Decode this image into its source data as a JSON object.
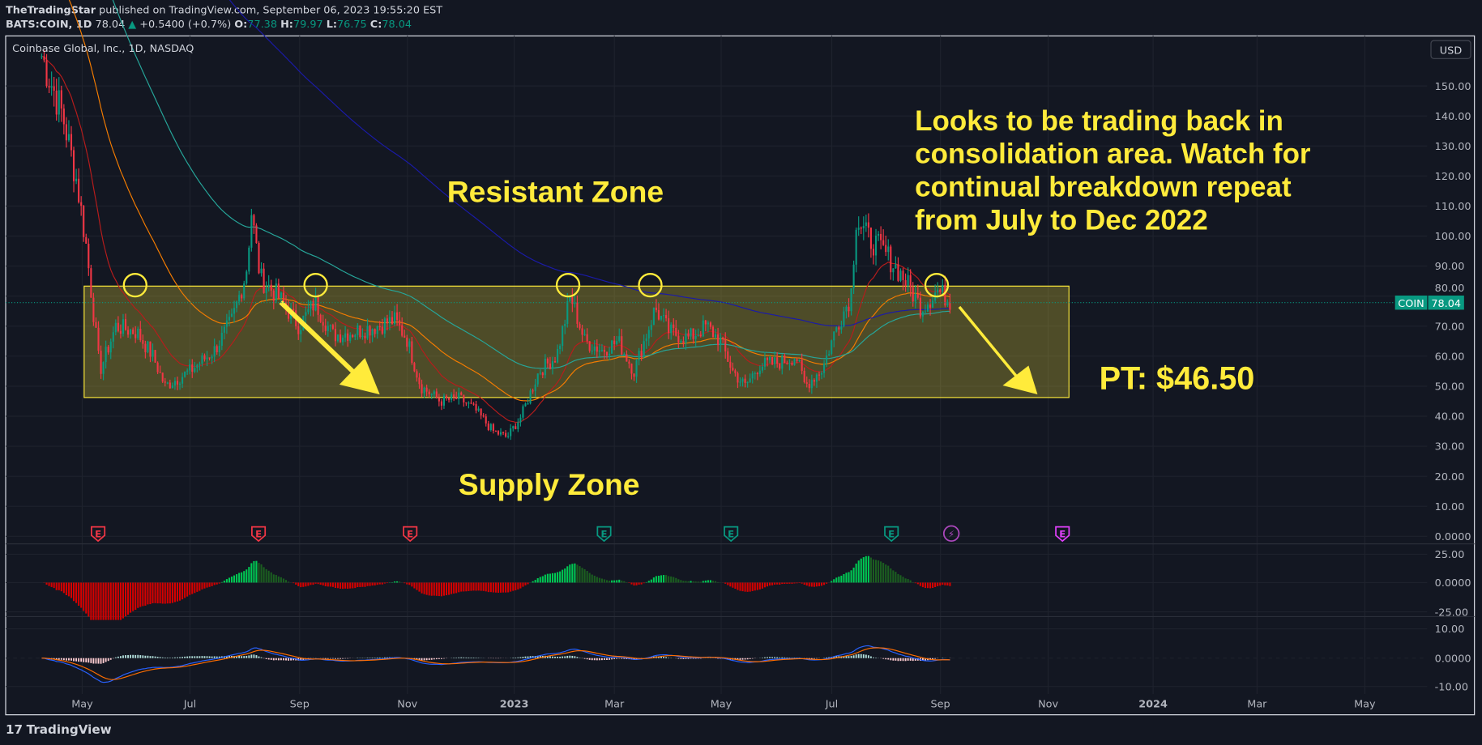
{
  "header": {
    "author": "TheTradingStar",
    "published": "published on TradingView.com, September 06, 2023 19:55:20 EST",
    "symbol": "BATS:COIN, 1D",
    "last": "78.04",
    "change": "+0.5400 (+0.7%)",
    "o_label": "O:",
    "o": "77.38",
    "h_label": "H:",
    "h": "79.97",
    "l_label": "L:",
    "l": "76.75",
    "c_label": "C:",
    "c": "78.04"
  },
  "legend_title": "Coinbase Global, Inc., 1D, NASDAQ",
  "currency_button": "USD",
  "price_tag": {
    "symbol": "COIN",
    "value": "78.04",
    "color": "#089981"
  },
  "footer_brand": "TradingView",
  "annotations": {
    "resistant": "Resistant Zone",
    "supply": "Supply Zone",
    "note": [
      "Looks to be trading back in",
      "consolidation area. Watch for",
      "continual breakdown repeat",
      "from July to Dec 2022"
    ],
    "target": "PT: $46.50"
  },
  "colors": {
    "up": "#089981",
    "down": "#f23645",
    "annotation": "#ffeb3b",
    "zone_fill": "rgba(255,235,59,0.25)"
  },
  "events": [
    {
      "type": "earnings",
      "date": "2022-05-10",
      "color": "#f23645",
      "label": "E"
    },
    {
      "type": "earnings",
      "date": "2022-08-09",
      "color": "#f23645",
      "label": "E"
    },
    {
      "type": "earnings",
      "date": "2022-11-03",
      "color": "#f23645",
      "label": "E"
    },
    {
      "type": "earnings",
      "date": "2023-02-21",
      "color": "#089981",
      "label": "E"
    },
    {
      "type": "earnings",
      "date": "2023-05-04",
      "color": "#089981",
      "label": "E"
    },
    {
      "type": "earnings",
      "date": "2023-08-03",
      "color": "#089981",
      "label": "E"
    },
    {
      "type": "dividend-split",
      "date": "2023-09-06",
      "color": "#ab47bc",
      "label": "⚡"
    },
    {
      "type": "earnings-upcoming",
      "date": "2023-11-08",
      "color": "#e040fb",
      "label": "E"
    }
  ],
  "chart_data": {
    "type": "candlestick",
    "title": "Coinbase Global, Inc., 1D, NASDAQ",
    "x_ticks": [
      "May",
      "Jul",
      "Sep",
      "Nov",
      "2023",
      "Mar",
      "May",
      "Jul",
      "Sep",
      "Nov",
      "2024",
      "Mar",
      "May"
    ],
    "y_ticks": [
      "150.00",
      "140.00",
      "130.00",
      "120.00",
      "110.00",
      "100.00",
      "90.00",
      "80.00",
      "70.00",
      "60.00",
      "50.00",
      "40.00",
      "30.00",
      "20.00",
      "10.00",
      "0.0000"
    ],
    "ylim": [
      0,
      150
    ],
    "osc1_ticks": [
      "25.00",
      "0.0000",
      "-25.00"
    ],
    "osc2_ticks": [
      "10.00",
      "0.0000",
      "-10.00"
    ],
    "zone": {
      "top": 83.5,
      "bottom": 46.5
    },
    "close_path": [
      [
        "2022-04-08",
        160
      ],
      [
        "2022-04-20",
        140
      ],
      [
        "2022-04-28",
        118
      ],
      [
        "2022-05-03",
        98
      ],
      [
        "2022-05-11",
        55
      ],
      [
        "2022-05-20",
        70
      ],
      [
        "2022-06-01",
        68
      ],
      [
        "2022-06-10",
        60
      ],
      [
        "2022-06-17",
        50
      ],
      [
        "2022-07-01",
        55
      ],
      [
        "2022-07-15",
        62
      ],
      [
        "2022-07-25",
        72
      ],
      [
        "2022-08-02",
        88
      ],
      [
        "2022-08-05",
        108
      ],
      [
        "2022-08-10",
        86
      ],
      [
        "2022-08-20",
        80
      ],
      [
        "2022-09-01",
        70
      ],
      [
        "2022-09-10",
        78
      ],
      [
        "2022-09-20",
        67
      ],
      [
        "2022-10-01",
        68
      ],
      [
        "2022-10-15",
        70
      ],
      [
        "2022-10-25",
        72
      ],
      [
        "2022-11-01",
        66
      ],
      [
        "2022-11-09",
        50
      ],
      [
        "2022-11-20",
        45
      ],
      [
        "2022-12-01",
        46
      ],
      [
        "2022-12-10",
        42
      ],
      [
        "2022-12-20",
        35
      ],
      [
        "2022-12-28",
        33
      ],
      [
        "2023-01-05",
        40
      ],
      [
        "2023-01-15",
        55
      ],
      [
        "2023-01-25",
        60
      ],
      [
        "2023-02-02",
        80
      ],
      [
        "2023-02-10",
        65
      ],
      [
        "2023-02-20",
        62
      ],
      [
        "2023-03-01",
        65
      ],
      [
        "2023-03-10",
        55
      ],
      [
        "2023-03-22",
        76
      ],
      [
        "2023-03-30",
        68
      ],
      [
        "2023-04-10",
        66
      ],
      [
        "2023-04-20",
        70
      ],
      [
        "2023-04-28",
        65
      ],
      [
        "2023-05-05",
        55
      ],
      [
        "2023-05-12",
        50
      ],
      [
        "2023-05-20",
        57
      ],
      [
        "2023-06-01",
        58
      ],
      [
        "2023-06-10",
        60
      ],
      [
        "2023-06-15",
        50
      ],
      [
        "2023-06-25",
        56
      ],
      [
        "2023-07-03",
        70
      ],
      [
        "2023-07-11",
        80
      ],
      [
        "2023-07-14",
        106
      ],
      [
        "2023-07-20",
        100
      ],
      [
        "2023-07-31",
        94
      ],
      [
        "2023-08-10",
        86
      ],
      [
        "2023-08-20",
        76
      ],
      [
        "2023-08-29",
        82
      ],
      [
        "2023-09-06",
        78.04
      ]
    ]
  }
}
